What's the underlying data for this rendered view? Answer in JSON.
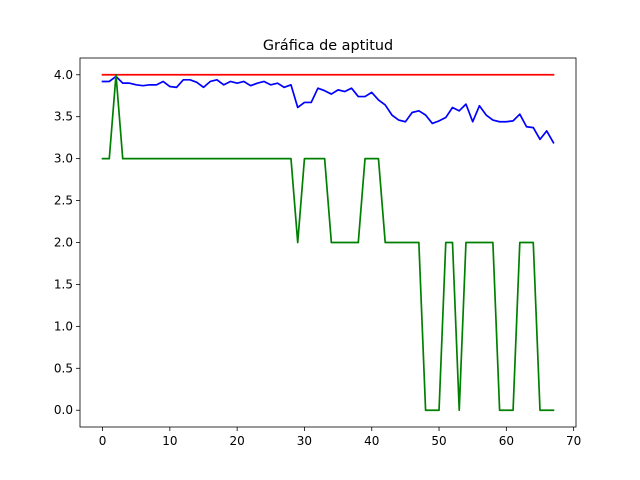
{
  "chart_data": {
    "type": "line",
    "title": "Gráfica de aptitud",
    "xlabel": "",
    "ylabel": "",
    "xlim": [
      -3.35,
      70.35
    ],
    "ylim": [
      -0.2,
      4.2
    ],
    "xticks": [
      0,
      10,
      20,
      30,
      40,
      50,
      60,
      70
    ],
    "yticks": [
      0.0,
      0.5,
      1.0,
      1.5,
      2.0,
      2.5,
      3.0,
      3.5,
      4.0
    ],
    "ytick_labels": [
      "0.0",
      "0.5",
      "1.0",
      "1.5",
      "2.0",
      "2.5",
      "3.0",
      "3.5",
      "4.0"
    ],
    "grid": false,
    "legend": "none",
    "series": [
      {
        "color": "#ff0000",
        "x": [
          0,
          67
        ],
        "y": [
          4.0,
          4.0
        ]
      },
      {
        "color": "#0000ff",
        "x": [
          0,
          1,
          2,
          3,
          4,
          5,
          6,
          7,
          8,
          9,
          10,
          11,
          12,
          13,
          14,
          15,
          16,
          17,
          18,
          19,
          20,
          21,
          22,
          23,
          24,
          25,
          26,
          27,
          28,
          29,
          30,
          31,
          32,
          33,
          34,
          35,
          36,
          37,
          38,
          39,
          40,
          41,
          42,
          43,
          44,
          45,
          46,
          47,
          48,
          49,
          50,
          51,
          52,
          53,
          54,
          55,
          56,
          57,
          58,
          59,
          60,
          61,
          62,
          63,
          64,
          65,
          66,
          67
        ],
        "y": [
          3.92,
          3.92,
          3.98,
          3.9,
          3.9,
          3.88,
          3.87,
          3.88,
          3.88,
          3.92,
          3.86,
          3.85,
          3.94,
          3.94,
          3.91,
          3.85,
          3.92,
          3.94,
          3.88,
          3.92,
          3.9,
          3.92,
          3.87,
          3.9,
          3.92,
          3.88,
          3.9,
          3.85,
          3.88,
          3.61,
          3.67,
          3.67,
          3.84,
          3.81,
          3.77,
          3.82,
          3.8,
          3.84,
          3.74,
          3.74,
          3.79,
          3.7,
          3.64,
          3.52,
          3.46,
          3.44,
          3.55,
          3.57,
          3.52,
          3.42,
          3.45,
          3.49,
          3.61,
          3.57,
          3.65,
          3.44,
          3.63,
          3.52,
          3.46,
          3.44,
          3.44,
          3.45,
          3.53,
          3.38,
          3.37,
          3.23,
          3.33,
          3.19
        ]
      },
      {
        "color": "#008000",
        "x": [
          0,
          1,
          2,
          3,
          4,
          5,
          6,
          7,
          8,
          9,
          10,
          11,
          12,
          13,
          14,
          15,
          16,
          17,
          18,
          19,
          20,
          21,
          22,
          23,
          24,
          25,
          26,
          27,
          28,
          29,
          30,
          31,
          32,
          33,
          34,
          35,
          36,
          37,
          38,
          39,
          40,
          41,
          42,
          43,
          44,
          45,
          46,
          47,
          48,
          49,
          50,
          51,
          52,
          53,
          54,
          55,
          56,
          57,
          58,
          59,
          60,
          61,
          62,
          63,
          64,
          65,
          66,
          67
        ],
        "y": [
          3,
          3,
          4,
          3,
          3,
          3,
          3,
          3,
          3,
          3,
          3,
          3,
          3,
          3,
          3,
          3,
          3,
          3,
          3,
          3,
          3,
          3,
          3,
          3,
          3,
          3,
          3,
          3,
          3,
          2,
          3,
          3,
          3,
          3,
          2,
          2,
          2,
          2,
          2,
          3,
          3,
          3,
          2,
          2,
          2,
          2,
          2,
          2,
          0,
          0,
          0,
          2,
          2,
          0,
          2,
          2,
          2,
          2,
          2,
          0,
          0,
          0,
          2,
          2,
          2,
          0,
          0,
          0
        ]
      }
    ]
  }
}
